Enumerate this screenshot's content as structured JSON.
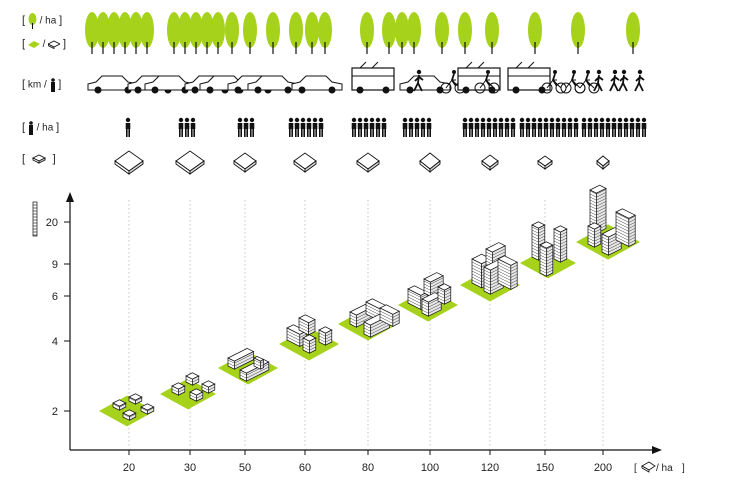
{
  "rows": [
    {
      "id": "trees",
      "label": "/ ha",
      "icon": "tree-icon"
    },
    {
      "id": "green-per-floor",
      "label": "/",
      "icon": "green-area-icon",
      "icon2": "floor-area-icon"
    },
    {
      "id": "km-per-person",
      "label": "km /",
      "icon": "person-icon"
    },
    {
      "id": "people",
      "label": "/ ha",
      "icon": "person-icon"
    },
    {
      "id": "footprint",
      "label": "",
      "icon": "building-icon"
    }
  ],
  "y_axis": {
    "icon": "stacked-floors-icon",
    "ticks": [
      "2",
      "4",
      "6",
      "9",
      "20"
    ]
  },
  "x_axis": {
    "unit": "/ ha",
    "unit_icon": "building-icon",
    "ticks": [
      "20",
      "30",
      "50",
      "60",
      "80",
      "100",
      "120",
      "150",
      "200"
    ]
  },
  "columns": [
    {
      "density": "20",
      "trees": 12,
      "transport": "car",
      "people": 1,
      "footprint": "large",
      "floors": 2
    },
    {
      "density": "30",
      "trees": 9,
      "transport": "car",
      "people": 2,
      "footprint": "large",
      "floors": 2
    },
    {
      "density": "50",
      "trees": 6,
      "transport": "car",
      "people": 3,
      "footprint": "medium",
      "floors": 3
    },
    {
      "density": "60",
      "trees": 5,
      "transport": "car",
      "people": 5,
      "footprint": "medium",
      "floors": 4
    },
    {
      "density": "80",
      "trees": 4,
      "transport": "bus",
      "people": 5,
      "footprint": "medium",
      "floors": 4
    },
    {
      "density": "100",
      "trees": 4,
      "transport": "bike",
      "people": 5,
      "footprint": "medium",
      "floors": 5
    },
    {
      "density": "120",
      "trees": 3,
      "transport": "bus-bike",
      "people": 8,
      "footprint": "small",
      "floors": 6
    },
    {
      "density": "150",
      "trees": 2,
      "transport": "walk",
      "people": 10,
      "footprint": "small",
      "floors": 9
    },
    {
      "density": "200",
      "trees": 1,
      "transport": "walk",
      "people": 14,
      "footprint": "small",
      "floors": 20
    }
  ],
  "colors": {
    "lime": "#a6d21c",
    "ink": "#111111",
    "grid": "#999999"
  }
}
